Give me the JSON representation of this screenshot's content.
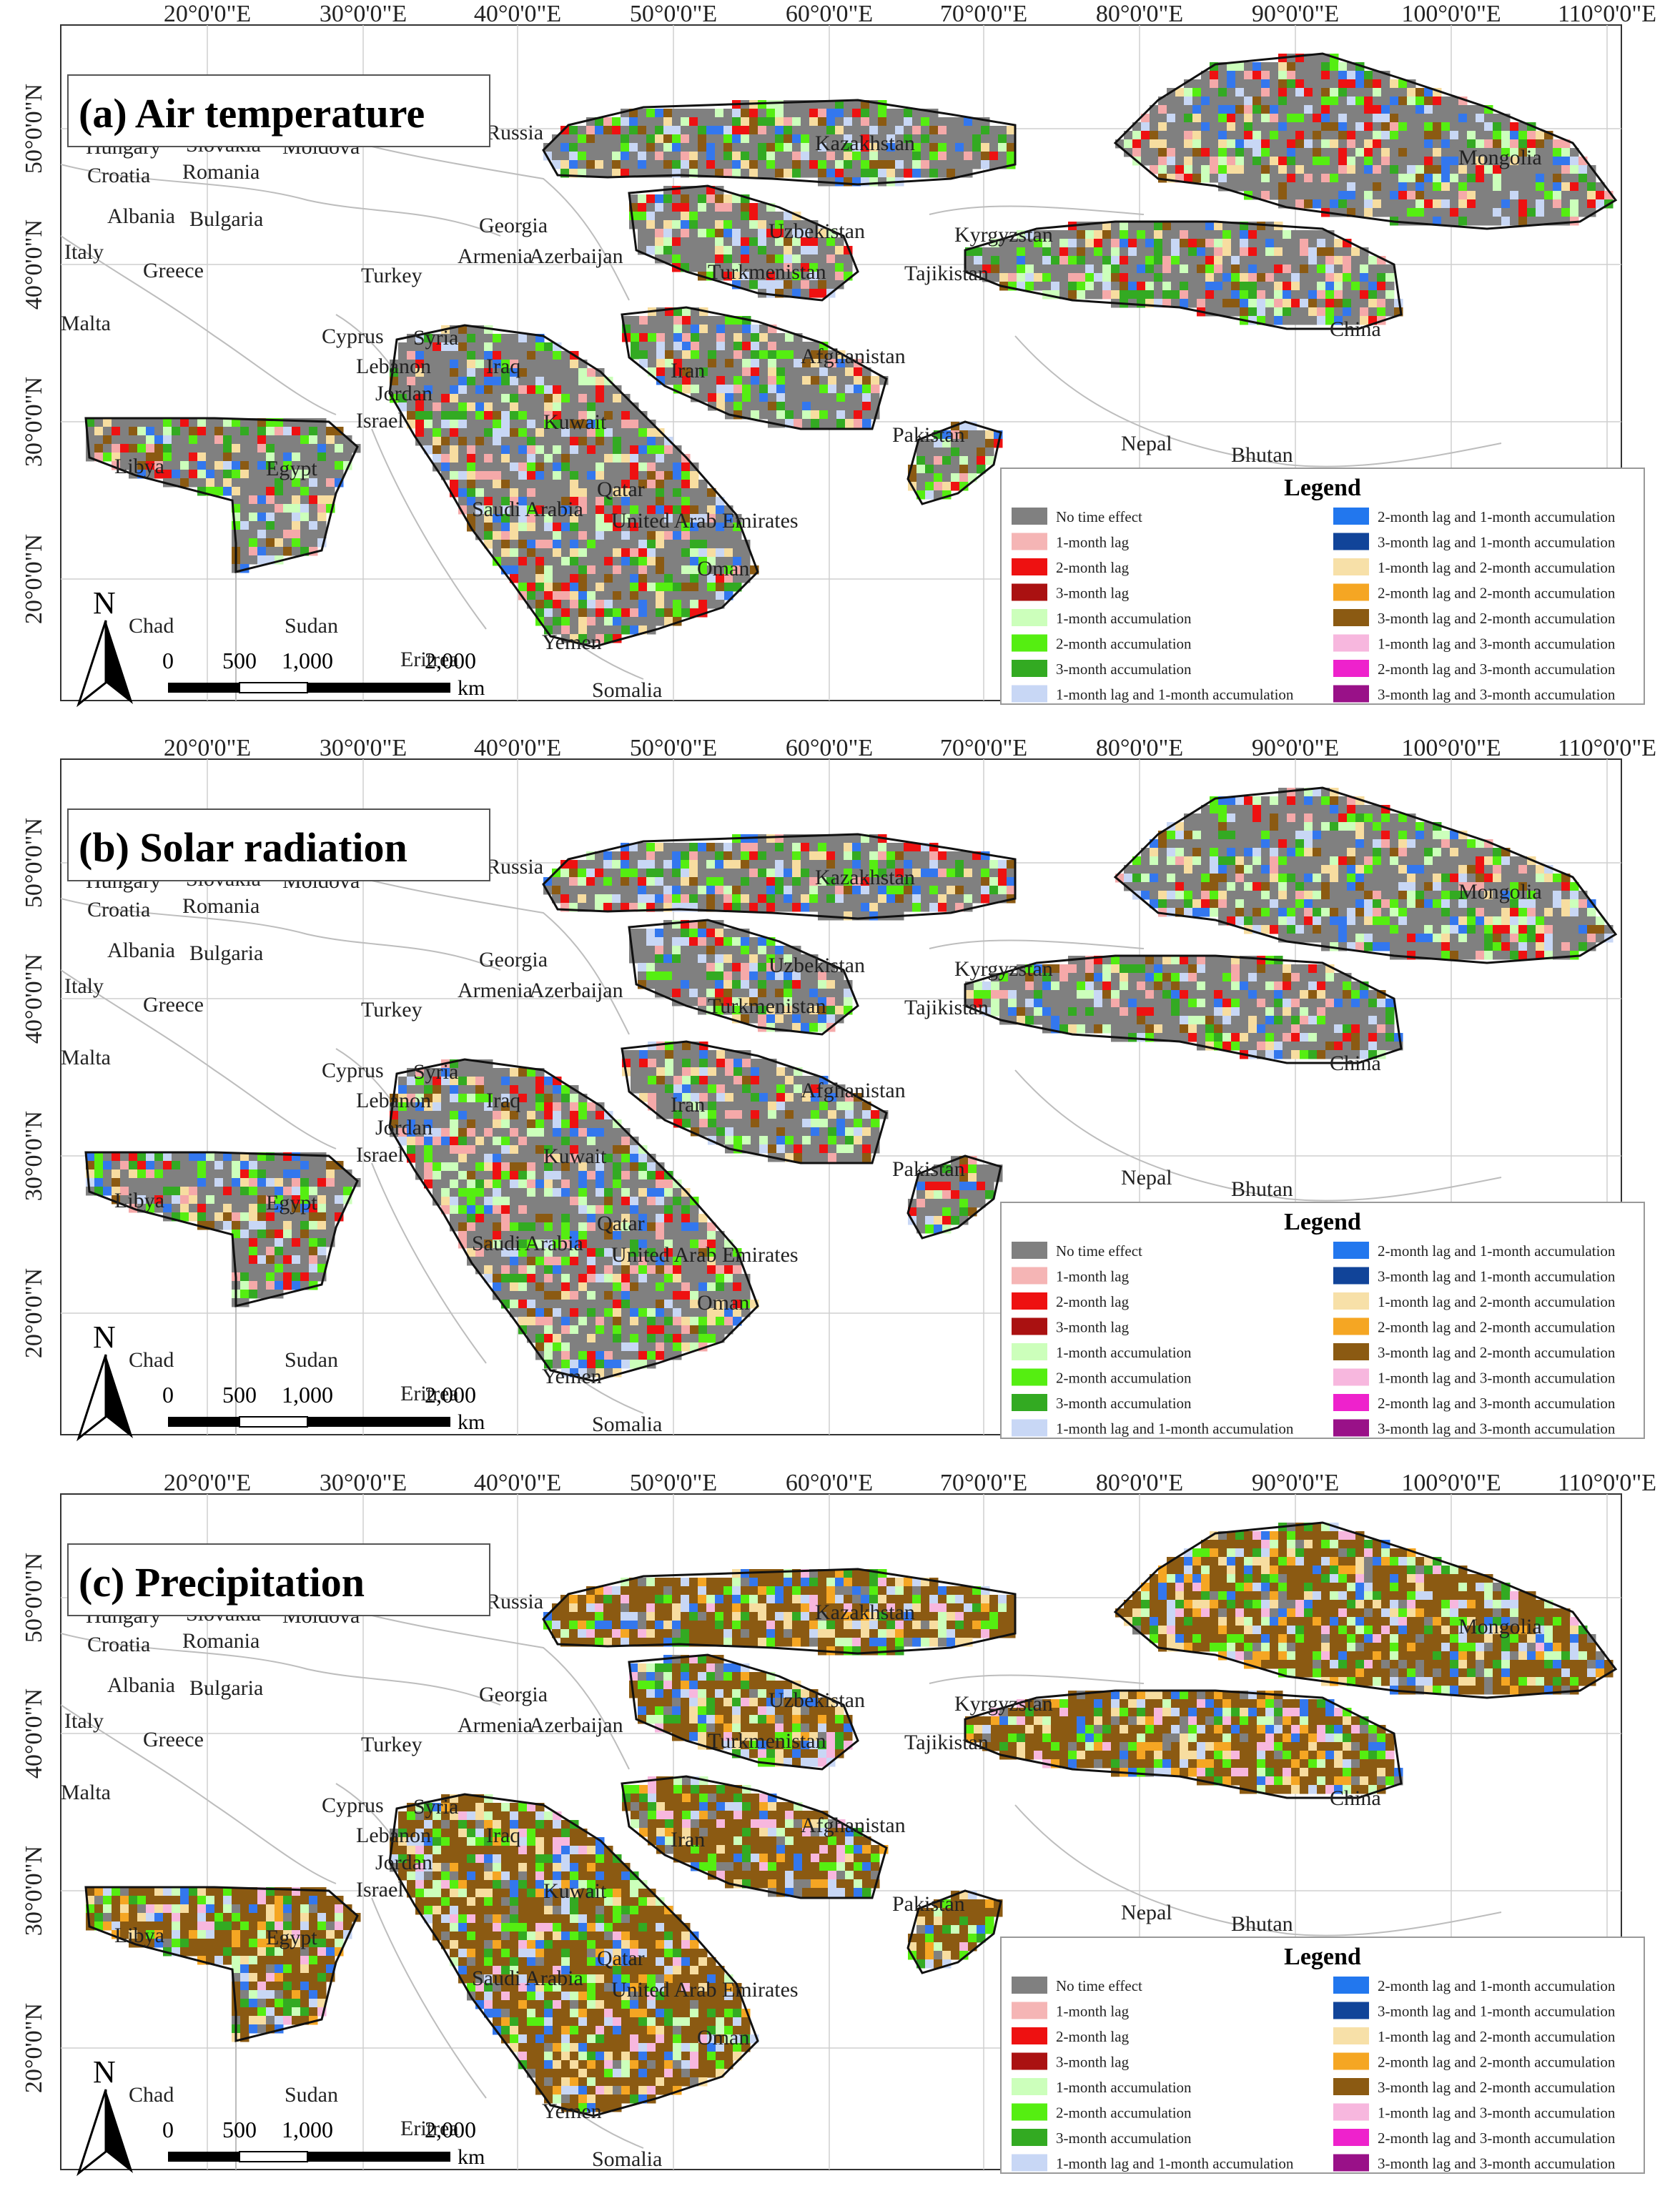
{
  "panels": [
    {
      "id": "a",
      "title": "(a) Air temperature",
      "dominant": "#808080",
      "mix": [
        "#808080",
        "#8b5a12",
        "#55ee11",
        "#ccffbb",
        "#33aa22",
        "#f5a9a9",
        "#3377ee",
        "#ee1111",
        "#f7dda0",
        "#c8d7f5"
      ]
    },
    {
      "id": "b",
      "title": "(b) Solar radiation",
      "dominant": "#808080",
      "mix": [
        "#808080",
        "#ee1111",
        "#33aa22",
        "#55ee11",
        "#8b5a12",
        "#3377ee",
        "#f5a9a9",
        "#ccffbb",
        "#f7dda0",
        "#c8d7f5"
      ]
    },
    {
      "id": "c",
      "title": "(c) Precipitation",
      "dominant": "#8b5a12",
      "mix": [
        "#8b5a12",
        "#55ee11",
        "#33aa22",
        "#808080",
        "#ccffbb",
        "#f7b7de",
        "#c8d7f5",
        "#f5a623",
        "#3377ee",
        "#f7dda0"
      ]
    }
  ],
  "lon_labels": [
    "20°0'0\"E",
    "30°0'0\"E",
    "40°0'0\"E",
    "50°0'0\"E",
    "60°0'0\"E",
    "70°0'0\"E",
    "80°0'0\"E",
    "90°0'0\"E",
    "100°0'0\"E",
    "110°0'0\"E"
  ],
  "lat_labels": [
    "50°0'0\"N",
    "40°0'0\"N",
    "30°0'0\"N",
    "20°0'0\"N"
  ],
  "countries": [
    "Russia",
    "Kazakhstan",
    "Mongolia",
    "Hungary",
    "Slovakia",
    "Moldova",
    "Croatia",
    "Romania",
    "Albania",
    "Bulgaria",
    "Italy",
    "Greece",
    "Georgia",
    "Armenia",
    "Azerbaijan",
    "Uzbekistan",
    "Kyrgyzstan",
    "Turkey",
    "Turkmenistan",
    "Tajikistan",
    "China",
    "Malta",
    "Cyprus",
    "Syria",
    "Lebanon",
    "Iraq",
    "Jordan",
    "Israel",
    "Iran",
    "Afghanistan",
    "Kuwait",
    "Pakistan",
    "Libya",
    "Egypt",
    "Nepal",
    "Bhutan",
    "Saudi Arabia",
    "Qatar",
    "United Arab Emirates",
    "Oman",
    "Chad",
    "Sudan",
    "Yemen",
    "Eritrea",
    "Somalia"
  ],
  "legend": {
    "title": "Legend",
    "items": [
      {
        "label": "No time effect",
        "color": "#808080"
      },
      {
        "label": "1-month lag",
        "color": "#f5b5b5"
      },
      {
        "label": "2-month lag",
        "color": "#ee1111"
      },
      {
        "label": "3-month lag",
        "color": "#aa1111"
      },
      {
        "label": "1-month accumulation",
        "color": "#ccffbb"
      },
      {
        "label": "2-month accumulation",
        "color": "#55ee11"
      },
      {
        "label": "3-month accumulation",
        "color": "#33aa22"
      },
      {
        "label": "1-month lag and 1-month accumulation",
        "color": "#c8d7f5"
      },
      {
        "label": "2-month lag and 1-month accumulation",
        "color": "#2277ee"
      },
      {
        "label": "3-month lag and 1-month accumulation",
        "color": "#114499"
      },
      {
        "label": "1-month lag and 2-month accumulation",
        "color": "#f7e0a8"
      },
      {
        "label": "2-month lag and 2-month accumulation",
        "color": "#f5a623"
      },
      {
        "label": "3-month lag and 2-month accumulation",
        "color": "#8b5a12"
      },
      {
        "label": "1-month lag and 3-month accumulation",
        "color": "#f7b7de"
      },
      {
        "label": "2-month lag and 3-month accumulation",
        "color": "#ee22cc"
      },
      {
        "label": "3-month lag and 3-month accumulation",
        "color": "#991188"
      }
    ]
  },
  "north_label": "N",
  "scale": {
    "ticks": [
      "0",
      "500",
      "1,000",
      "2,000"
    ],
    "unit": "km"
  }
}
